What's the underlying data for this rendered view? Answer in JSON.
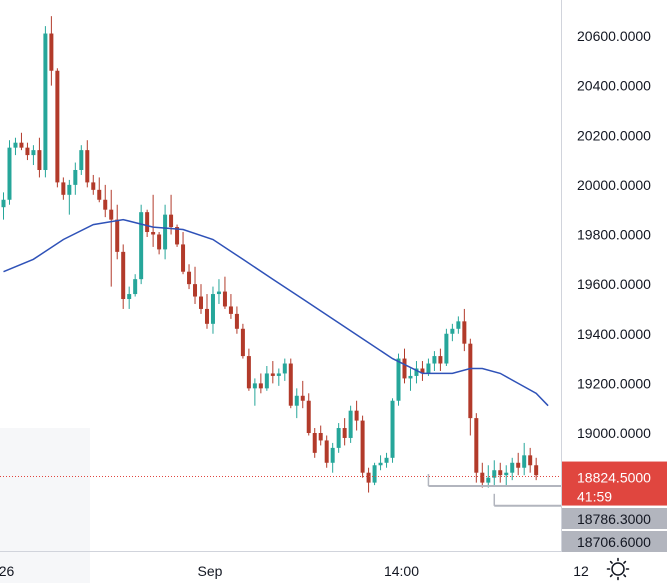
{
  "chart_data": {
    "type": "candlestick",
    "y_ticks": [
      "20600.0000",
      "20400.0000",
      "20200.0000",
      "20000.0000",
      "19800.0000",
      "19600.0000",
      "19400.0000",
      "19200.0000",
      "19000.0000"
    ],
    "y_tick_values": [
      20600,
      20400,
      20200,
      20000,
      19800,
      19600,
      19400,
      19200,
      19000
    ],
    "x_ticks": [
      "26",
      "Sep",
      "14:00",
      "12"
    ],
    "x_tick_bars": [
      0.5,
      34.5,
      66.5,
      96.5
    ],
    "ylim": [
      18550,
      20800
    ],
    "grid": false,
    "colors": {
      "up": "#26a69a",
      "down": "#b23a2a",
      "ma": "#2f52b8",
      "axis": "#d1d4dc",
      "price_tag": "#e0463f",
      "level_tag": "#b2b5be"
    },
    "current_price": {
      "label": "18824.5000",
      "countdown": "41:59",
      "value": 18824.5
    },
    "levels": [
      {
        "label": "18786.3000",
        "value": 18786.3,
        "from_bar": 71
      },
      {
        "label": "18706.6000",
        "value": 18706.6,
        "from_bar": 82
      }
    ],
    "candles": [
      [
        19910,
        19970,
        19860,
        19940
      ],
      [
        19940,
        20180,
        19920,
        20150
      ],
      [
        20150,
        20190,
        20120,
        20170
      ],
      [
        20170,
        20210,
        20140,
        20150
      ],
      [
        20150,
        20170,
        20100,
        20120
      ],
      [
        20120,
        20160,
        20080,
        20140
      ],
      [
        20140,
        20190,
        20030,
        20060
      ],
      [
        20060,
        20640,
        20030,
        20610
      ],
      [
        20610,
        20680,
        20400,
        20460
      ],
      [
        20460,
        20470,
        19990,
        20010
      ],
      [
        20010,
        20030,
        19940,
        19960
      ],
      [
        19960,
        20020,
        19880,
        20000
      ],
      [
        20000,
        20090,
        19960,
        20060
      ],
      [
        20060,
        20160,
        20040,
        20140
      ],
      [
        20140,
        20180,
        19990,
        20010
      ],
      [
        20010,
        20040,
        19960,
        19980
      ],
      [
        19980,
        20030,
        19930,
        19940
      ],
      [
        19940,
        20000,
        19870,
        19900
      ],
      [
        19900,
        19980,
        19590,
        19860
      ],
      [
        19860,
        19920,
        19700,
        19730
      ],
      [
        19730,
        19760,
        19500,
        19540
      ],
      [
        19540,
        19590,
        19500,
        19560
      ],
      [
        19560,
        19640,
        19550,
        19620
      ],
      [
        19620,
        19920,
        19600,
        19890
      ],
      [
        19890,
        19900,
        19790,
        19810
      ],
      [
        19810,
        19960,
        19750,
        19800
      ],
      [
        19800,
        19810,
        19720,
        19740
      ],
      [
        19740,
        19920,
        19700,
        19880
      ],
      [
        19880,
        19960,
        19800,
        19830
      ],
      [
        19830,
        19840,
        19750,
        19760
      ],
      [
        19760,
        19810,
        19640,
        19650
      ],
      [
        19650,
        19680,
        19580,
        19600
      ],
      [
        19600,
        19670,
        19520,
        19550
      ],
      [
        19550,
        19600,
        19480,
        19500
      ],
      [
        19500,
        19560,
        19420,
        19440
      ],
      [
        19440,
        19590,
        19400,
        19560
      ],
      [
        19560,
        19620,
        19520,
        19570
      ],
      [
        19570,
        19630,
        19500,
        19510
      ],
      [
        19510,
        19560,
        19460,
        19480
      ],
      [
        19480,
        19510,
        19400,
        19420
      ],
      [
        19420,
        19440,
        19300,
        19310
      ],
      [
        19310,
        19340,
        19170,
        19180
      ],
      [
        19180,
        19220,
        19110,
        19200
      ],
      [
        19200,
        19240,
        19160,
        19180
      ],
      [
        19180,
        19270,
        19170,
        19240
      ],
      [
        19240,
        19290,
        19200,
        19230
      ],
      [
        19230,
        19260,
        19190,
        19240
      ],
      [
        19240,
        19300,
        19210,
        19280
      ],
      [
        19280,
        19300,
        19100,
        19110
      ],
      [
        19110,
        19180,
        19060,
        19150
      ],
      [
        19150,
        19210,
        19100,
        19130
      ],
      [
        19130,
        19160,
        18990,
        19000
      ],
      [
        19000,
        19020,
        18900,
        18920
      ],
      [
        19000,
        19030,
        18950,
        18970
      ],
      [
        18970,
        18990,
        18860,
        18880
      ],
      [
        18880,
        18960,
        18840,
        18940
      ],
      [
        18940,
        19040,
        18920,
        19020
      ],
      [
        19020,
        19060,
        18950,
        18980
      ],
      [
        18980,
        19110,
        18960,
        19090
      ],
      [
        19090,
        19130,
        19010,
        19050
      ],
      [
        19050,
        19070,
        18820,
        18840
      ],
      [
        18840,
        18860,
        18760,
        18800
      ],
      [
        18800,
        18880,
        18790,
        18870
      ],
      [
        18870,
        18910,
        18850,
        18880
      ],
      [
        18880,
        18920,
        18860,
        18900
      ],
      [
        18900,
        19140,
        18880,
        19130
      ],
      [
        19130,
        19320,
        19110,
        19300
      ],
      [
        19300,
        19340,
        19200,
        19220
      ],
      [
        19220,
        19260,
        19170,
        19230
      ],
      [
        19230,
        19290,
        19200,
        19260
      ],
      [
        19260,
        19290,
        19210,
        19240
      ],
      [
        19240,
        19300,
        19230,
        19280
      ],
      [
        19280,
        19330,
        19250,
        19310
      ],
      [
        19310,
        19340,
        19250,
        19280
      ],
      [
        19280,
        19420,
        19270,
        19400
      ],
      [
        19400,
        19440,
        19370,
        19420
      ],
      [
        19420,
        19470,
        19400,
        19450
      ],
      [
        19450,
        19500,
        19330,
        19360
      ],
      [
        19360,
        19380,
        18990,
        19060
      ],
      [
        19060,
        19080,
        18800,
        18840
      ],
      [
        18840,
        18880,
        18780,
        18800
      ],
      [
        18800,
        18870,
        18780,
        18820
      ],
      [
        18820,
        18890,
        18790,
        18850
      ],
      [
        18850,
        18880,
        18800,
        18830
      ],
      [
        18830,
        18870,
        18790,
        18840
      ],
      [
        18840,
        18900,
        18810,
        18880
      ],
      [
        18880,
        18920,
        18830,
        18860
      ],
      [
        18860,
        18960,
        18830,
        18910
      ],
      [
        18910,
        18940,
        18840,
        18870
      ],
      [
        18870,
        18900,
        18810,
        18830
      ]
    ],
    "ma": [
      [
        0,
        19650
      ],
      [
        5,
        19700
      ],
      [
        10,
        19780
      ],
      [
        15,
        19840
      ],
      [
        20,
        19860
      ],
      [
        25,
        19830
      ],
      [
        30,
        19820
      ],
      [
        35,
        19780
      ],
      [
        40,
        19700
      ],
      [
        45,
        19620
      ],
      [
        50,
        19540
      ],
      [
        55,
        19460
      ],
      [
        60,
        19380
      ],
      [
        65,
        19300
      ],
      [
        70,
        19240
      ],
      [
        75,
        19240
      ],
      [
        78,
        19260
      ],
      [
        80,
        19260
      ],
      [
        83,
        19240
      ],
      [
        86,
        19200
      ],
      [
        89,
        19160
      ],
      [
        91,
        19110
      ]
    ]
  }
}
